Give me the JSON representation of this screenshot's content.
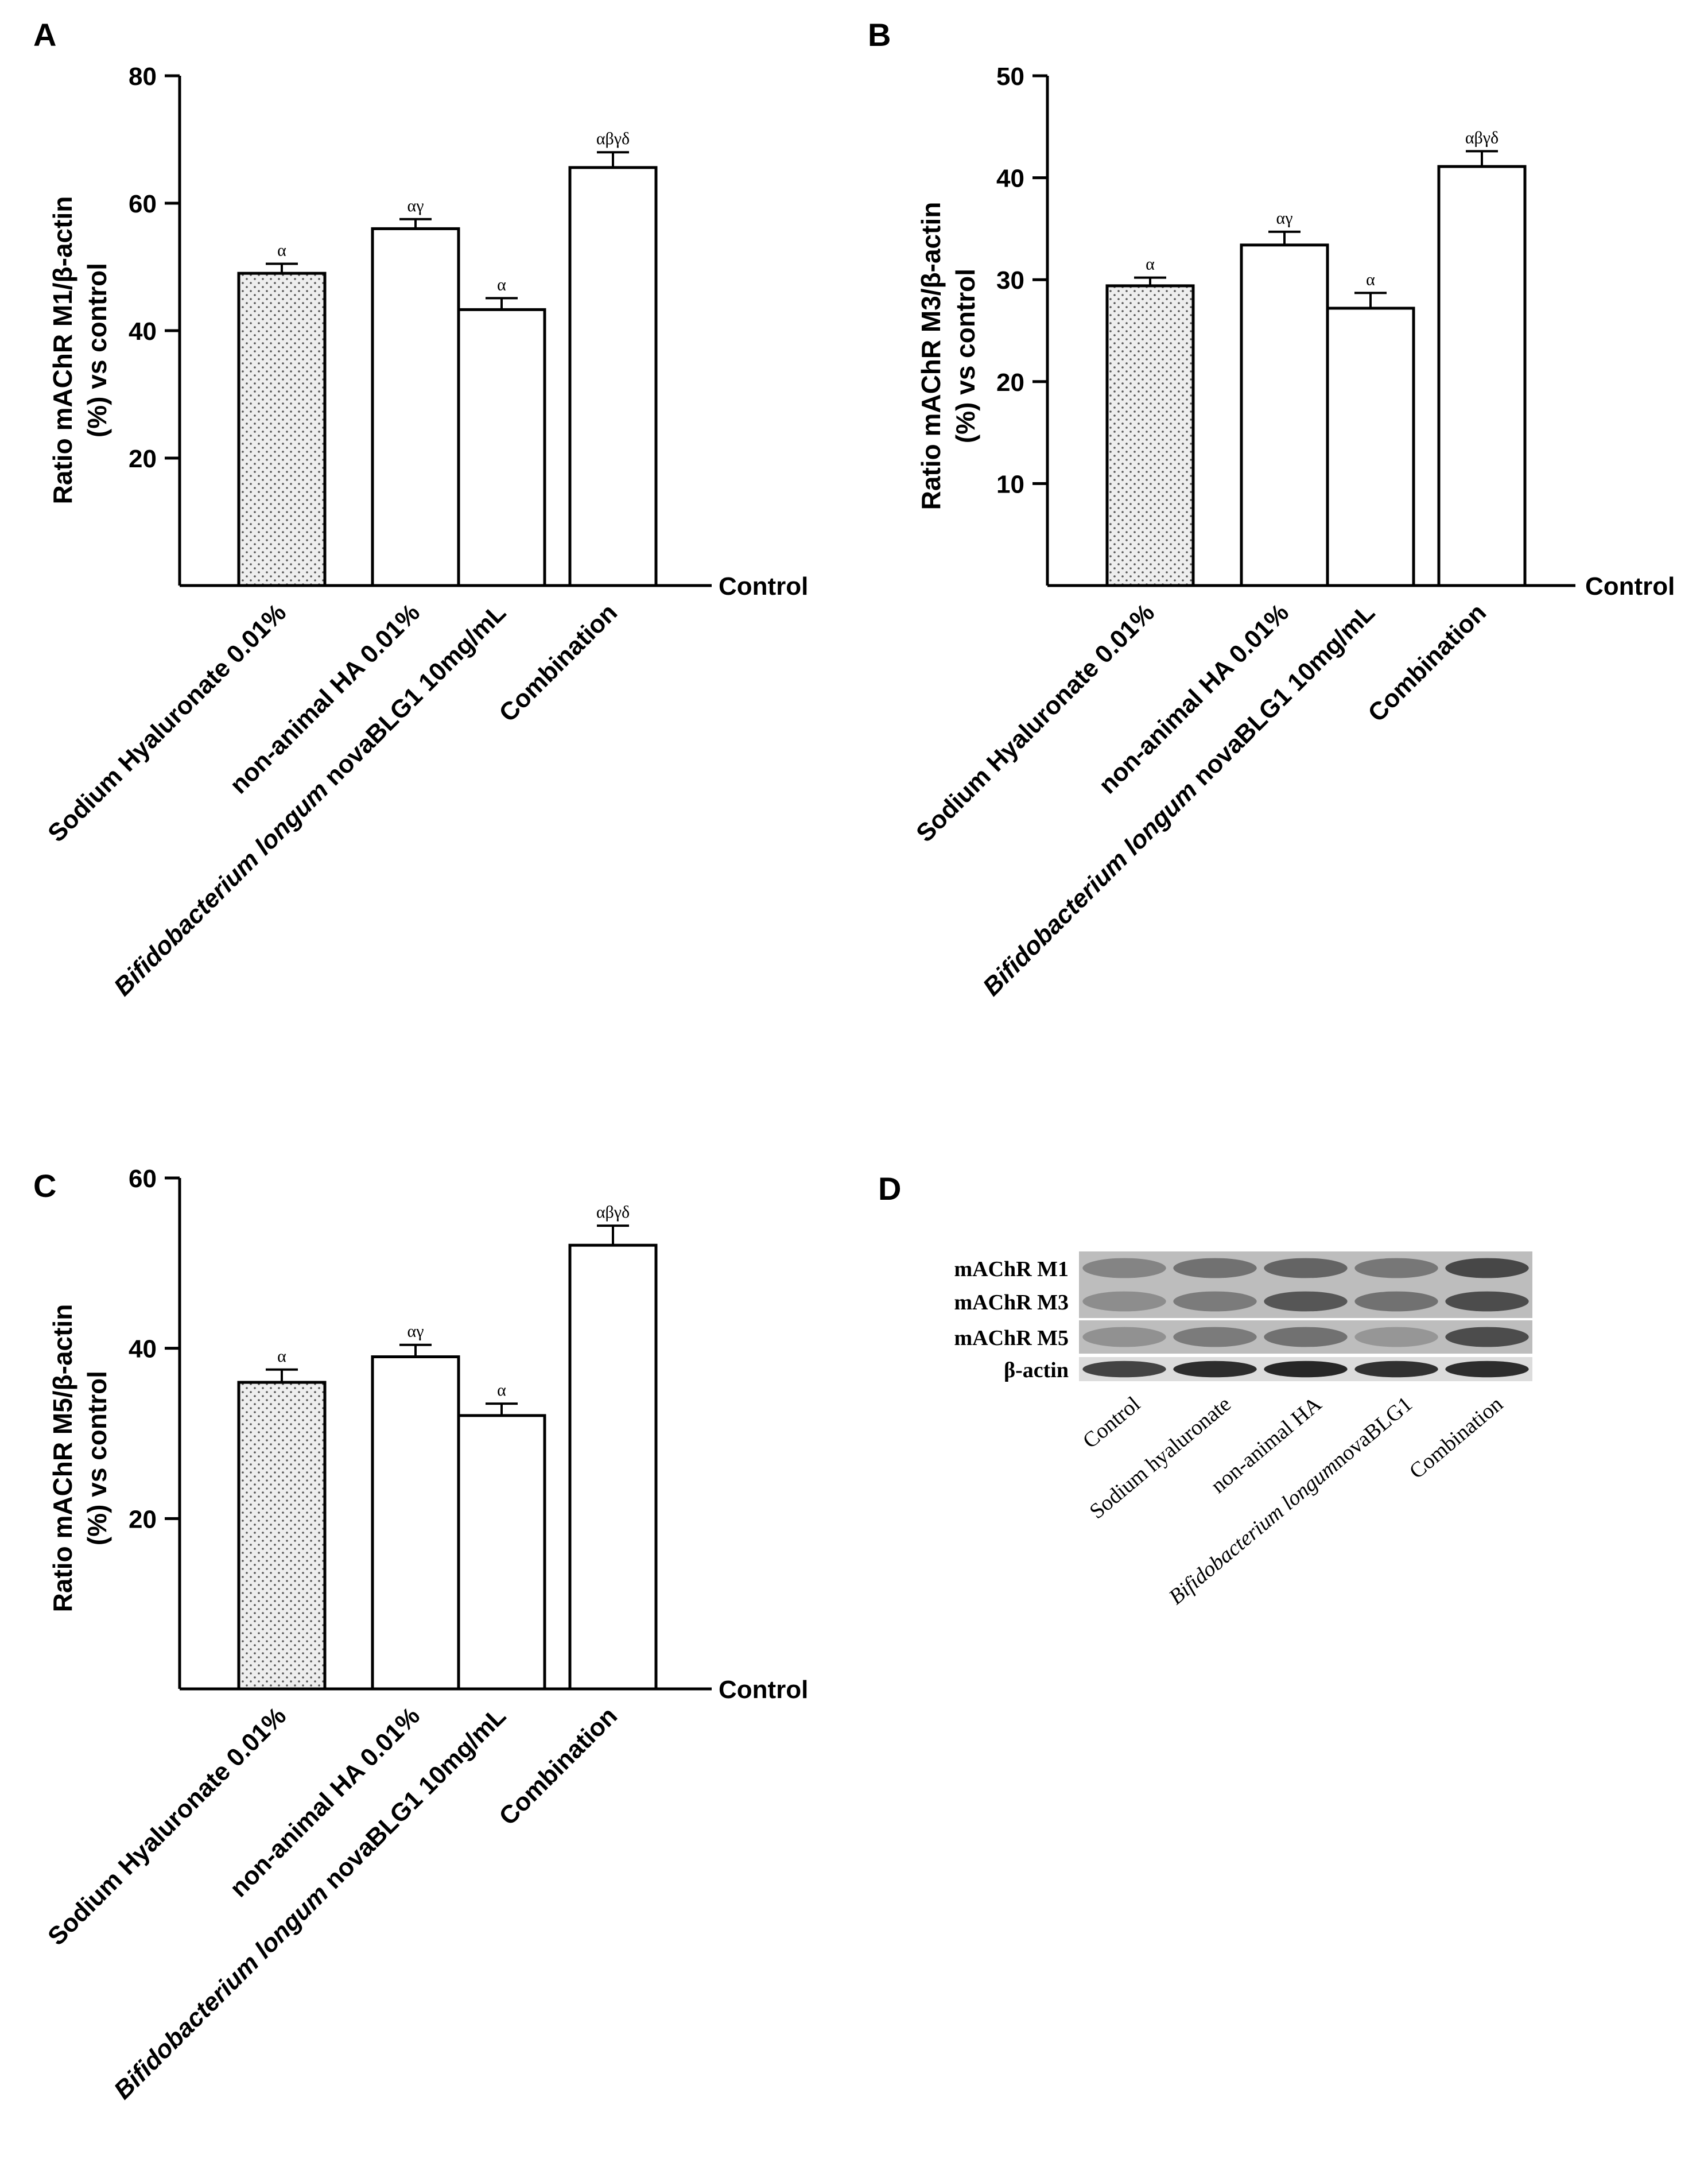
{
  "colors": {
    "axis": "#000000",
    "bar_fill": "#ffffff",
    "dotted_fill": "#eeeeee",
    "dot": "#555555",
    "blot_light": "#c9c9c9",
    "blot_dark": "#2c2c2c"
  },
  "chart_data": [
    {
      "panel_label": "A",
      "type": "bar",
      "ylabel_line1": "Ratio mAChR M1/β-actin",
      "ylabel_line2": "(%) vs control",
      "baseline_label": "Control",
      "ylim": [
        0,
        80
      ],
      "yticks": [
        20,
        40,
        60,
        80
      ],
      "categories": [
        {
          "plain": "Sodium Hyaluronate 0.01%"
        },
        {
          "plain": "non-animal HA 0.01%"
        },
        {
          "italic": "Bifidobacterium longum",
          "plain": " novaBLG1 10mg/mL"
        },
        {
          "plain": "Combination"
        }
      ],
      "values": [
        49,
        56,
        43.3,
        65.6
      ],
      "errors": [
        1.5,
        1.5,
        1.8,
        2.4
      ],
      "significance": [
        "α",
        "αγ",
        "α",
        "αβγδ"
      ],
      "fill_patterns": [
        "dotted",
        "white",
        "white",
        "white"
      ]
    },
    {
      "panel_label": "B",
      "type": "bar",
      "ylabel_line1": "Ratio mAChR M3/β-actin",
      "ylabel_line2": "(%) vs control",
      "baseline_label": "Control",
      "ylim": [
        0,
        50
      ],
      "yticks": [
        10,
        20,
        30,
        40,
        50
      ],
      "categories": [
        {
          "plain": "Sodium Hyaluronate 0.01%"
        },
        {
          "plain": "non-animal HA 0.01%"
        },
        {
          "italic": "Bifidobacterium longum",
          "plain": " novaBLG1 10mg/mL"
        },
        {
          "plain": "Combination"
        }
      ],
      "values": [
        29.4,
        33.4,
        27.2,
        41.1
      ],
      "errors": [
        0.8,
        1.3,
        1.5,
        1.5
      ],
      "significance": [
        "α",
        "αγ",
        "α",
        "αβγδ"
      ],
      "fill_patterns": [
        "dotted",
        "white",
        "white",
        "white"
      ]
    },
    {
      "panel_label": "C",
      "type": "bar",
      "ylabel_line1": "Ratio mAChR M5/β-actin",
      "ylabel_line2": "(%) vs control",
      "baseline_label": "Control",
      "ylim": [
        0,
        60
      ],
      "yticks": [
        20,
        40,
        60
      ],
      "categories": [
        {
          "plain": "Sodium Hyaluronate 0.01%"
        },
        {
          "plain": "non-animal HA 0.01%"
        },
        {
          "italic": "Bifidobacterium longum",
          "plain": " novaBLG1 10mg/mL"
        },
        {
          "plain": "Combination"
        }
      ],
      "values": [
        36,
        39,
        32.1,
        52.1
      ],
      "errors": [
        1.5,
        1.4,
        1.4,
        2.3
      ],
      "significance": [
        "α",
        "αγ",
        "α",
        "αβγδ"
      ],
      "fill_patterns": [
        "dotted",
        "white",
        "white",
        "white"
      ]
    }
  ],
  "blot": {
    "panel_label": "D",
    "rows": [
      "mAChR M1",
      "mAChR M3",
      "mAChR M5",
      "β-actin"
    ],
    "lanes": [
      {
        "plain": "Control"
      },
      {
        "plain": "Sodium hyaluronate"
      },
      {
        "plain": "non-animal HA"
      },
      {
        "italic": "Bifidobacterium longum",
        "plain": "novaBLG1"
      },
      {
        "plain": "Combination"
      }
    ],
    "band_intensity": [
      [
        0.45,
        0.55,
        0.62,
        0.52,
        0.78
      ],
      [
        0.4,
        0.5,
        0.7,
        0.55,
        0.75
      ],
      [
        0.38,
        0.5,
        0.55,
        0.35,
        0.75
      ],
      [
        0.8,
        0.92,
        0.95,
        0.9,
        0.92
      ]
    ]
  }
}
